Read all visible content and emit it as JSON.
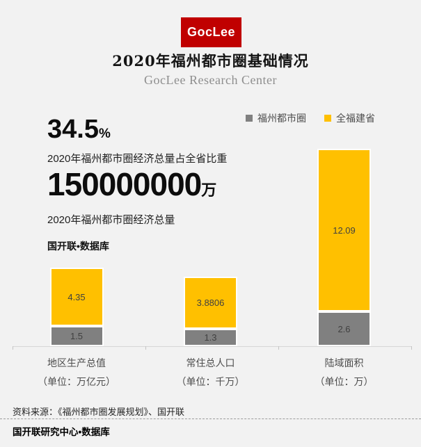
{
  "logo": {
    "text": "GocLee",
    "color": "#c00000"
  },
  "header": {
    "title": "2020年福州都市圈基础情况",
    "subtitle": "GocLee Research Center"
  },
  "stats": [
    {
      "value": "34.5",
      "unit": "%",
      "caption": "2020年福州都市圈经济总量占全省比重"
    },
    {
      "value": "150000000",
      "unit": "万",
      "caption": "2020年福州都市圈经济总量"
    }
  ],
  "db_label": "国开联•数据库",
  "chart_data": {
    "type": "bar",
    "stacked": true,
    "title": "2020年福州都市圈基础情况",
    "categories": [
      "地区生产总值",
      "常住总人口",
      "陆域面积"
    ],
    "category_units": [
      "（单位：万亿元）",
      "（单位：千万）",
      "（单位：万）"
    ],
    "series": [
      {
        "key": "metro",
        "name": "福州都市圈",
        "color": "#808080",
        "values": [
          1.5,
          1.3,
          2.6
        ]
      },
      {
        "key": "province",
        "name": "全福建省",
        "color": "#FFC000",
        "values": [
          4.35,
          3.8806,
          12.09
        ]
      }
    ],
    "ylim": [
      0,
      15
    ],
    "grid": false,
    "legend_position": "top-right",
    "value_labels": true
  },
  "footer": {
    "source": "资料来源：《福州都市圈发展规划》、国开联",
    "brand": "国开联研究中心•数据库"
  }
}
